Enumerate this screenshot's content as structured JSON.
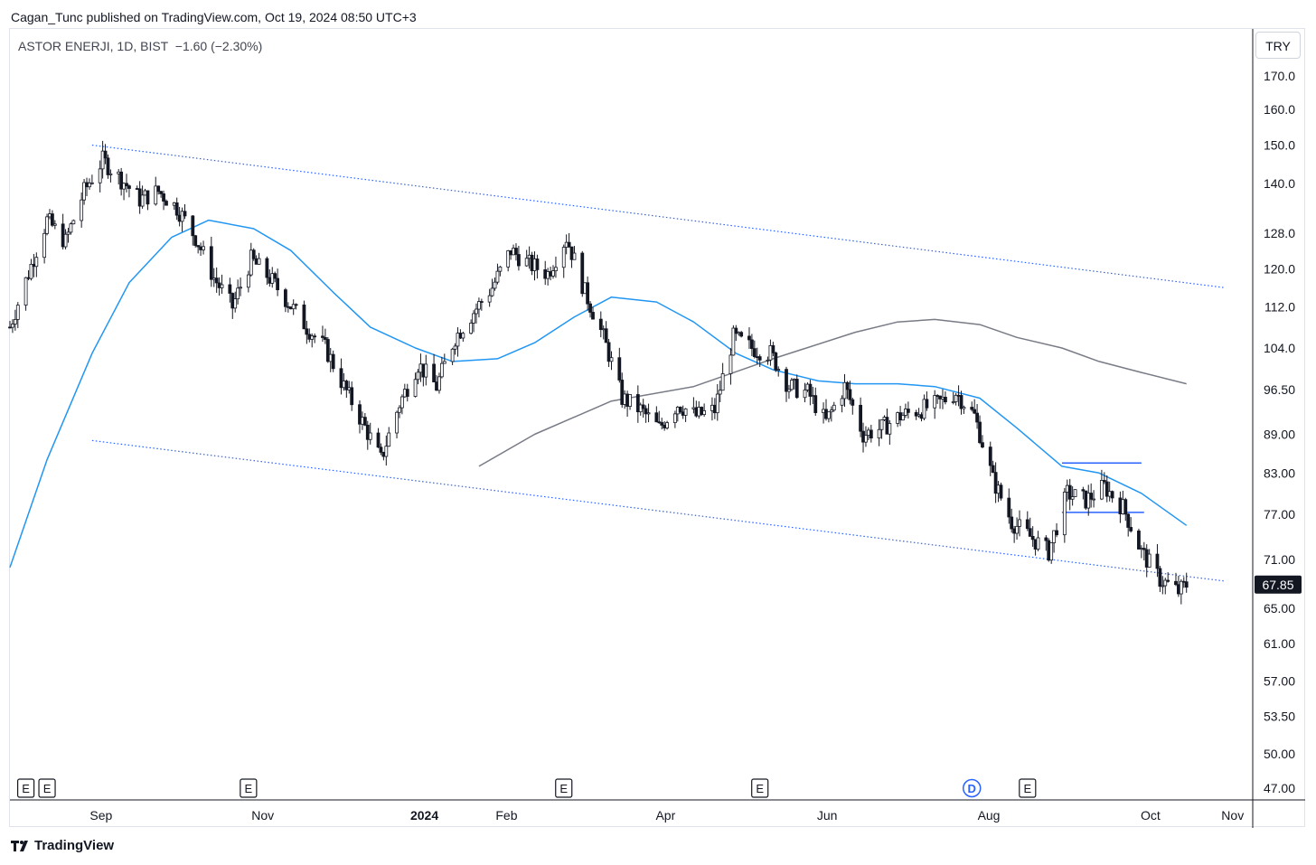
{
  "header": {
    "published_text": "Cagan_Tunc published on TradingView.com, Oct 19, 2024 08:50 UTC+3"
  },
  "legend": {
    "symbol": "ASTOR ENERJI, 1D, BIST",
    "change": "−1.60 (−2.30%)"
  },
  "currency_button": "TRY",
  "footer": {
    "brand": "TradingView"
  },
  "colors": {
    "candle": "#131722",
    "ma_fast": "#2196f3",
    "ma_slow": "#787b86",
    "channel": "#2962ff",
    "last_price_bg": "#131722"
  },
  "chart_data": {
    "type": "candlestick",
    "price_scale": "log",
    "y_ticks": [
      "170.0",
      "160.0",
      "150.0",
      "140.0",
      "128.0",
      "120.0",
      "112.0",
      "104.0",
      "96.50",
      "89.00",
      "83.00",
      "77.00",
      "71.00",
      "65.00",
      "61.00",
      "57.00",
      "53.50",
      "50.00",
      "47.00"
    ],
    "x_ticks": [
      {
        "label": "Sep",
        "bold": false
      },
      {
        "label": "Nov",
        "bold": false
      },
      {
        "label": "2024",
        "bold": true
      },
      {
        "label": "Feb",
        "bold": false
      },
      {
        "label": "Apr",
        "bold": false
      },
      {
        "label": "Jun",
        "bold": false
      },
      {
        "label": "Aug",
        "bold": false
      },
      {
        "label": "Oct",
        "bold": false
      },
      {
        "label": "Nov",
        "bold": false
      }
    ],
    "last_price": "67.85",
    "x_range": [
      "2023-08-01",
      "2024-11-12"
    ],
    "y_range": [
      46,
      185
    ],
    "events": [
      {
        "label": "E",
        "date": "2023-08-07"
      },
      {
        "label": "E",
        "date": "2023-08-15"
      },
      {
        "label": "E",
        "date": "2023-10-30"
      },
      {
        "label": "E",
        "date": "2024-02-26"
      },
      {
        "label": "E",
        "date": "2024-05-10"
      },
      {
        "label": "D",
        "date": "2024-07-29"
      },
      {
        "label": "E",
        "date": "2024-08-19"
      }
    ],
    "close_series": [
      {
        "date": "2023-08-01",
        "value": 108
      },
      {
        "date": "2023-08-08",
        "value": 119
      },
      {
        "date": "2023-08-15",
        "value": 131
      },
      {
        "date": "2023-08-22",
        "value": 126
      },
      {
        "date": "2023-08-29",
        "value": 138
      },
      {
        "date": "2023-09-05",
        "value": 146
      },
      {
        "date": "2023-09-12",
        "value": 141
      },
      {
        "date": "2023-09-19",
        "value": 136
      },
      {
        "date": "2023-09-26",
        "value": 138
      },
      {
        "date": "2023-10-03",
        "value": 134
      },
      {
        "date": "2023-10-10",
        "value": 127
      },
      {
        "date": "2023-10-17",
        "value": 118
      },
      {
        "date": "2023-10-24",
        "value": 112
      },
      {
        "date": "2023-10-31",
        "value": 122
      },
      {
        "date": "2023-11-07",
        "value": 118
      },
      {
        "date": "2023-11-14",
        "value": 113
      },
      {
        "date": "2023-11-21",
        "value": 108
      },
      {
        "date": "2023-11-28",
        "value": 104
      },
      {
        "date": "2023-12-05",
        "value": 97
      },
      {
        "date": "2023-12-12",
        "value": 91
      },
      {
        "date": "2023-12-19",
        "value": 85
      },
      {
        "date": "2023-12-26",
        "value": 94
      },
      {
        "date": "2024-01-02",
        "value": 101
      },
      {
        "date": "2024-01-09",
        "value": 97
      },
      {
        "date": "2024-01-16",
        "value": 106
      },
      {
        "date": "2024-01-23",
        "value": 111
      },
      {
        "date": "2024-01-30",
        "value": 116
      },
      {
        "date": "2024-02-06",
        "value": 124
      },
      {
        "date": "2024-02-13",
        "value": 121
      },
      {
        "date": "2024-02-20",
        "value": 119
      },
      {
        "date": "2024-02-27",
        "value": 127
      },
      {
        "date": "2024-03-05",
        "value": 115
      },
      {
        "date": "2024-03-12",
        "value": 106
      },
      {
        "date": "2024-03-19",
        "value": 95
      },
      {
        "date": "2024-03-26",
        "value": 93
      },
      {
        "date": "2024-04-02",
        "value": 90
      },
      {
        "date": "2024-04-09",
        "value": 94
      },
      {
        "date": "2024-04-16",
        "value": 92
      },
      {
        "date": "2024-04-23",
        "value": 93
      },
      {
        "date": "2024-04-30",
        "value": 106
      },
      {
        "date": "2024-05-07",
        "value": 104
      },
      {
        "date": "2024-05-14",
        "value": 103
      },
      {
        "date": "2024-05-21",
        "value": 97
      },
      {
        "date": "2024-05-28",
        "value": 96
      },
      {
        "date": "2024-06-04",
        "value": 91
      },
      {
        "date": "2024-06-11",
        "value": 97
      },
      {
        "date": "2024-06-18",
        "value": 89
      },
      {
        "date": "2024-06-25",
        "value": 90
      },
      {
        "date": "2024-07-02",
        "value": 92
      },
      {
        "date": "2024-07-09",
        "value": 93
      },
      {
        "date": "2024-07-16",
        "value": 94
      },
      {
        "date": "2024-07-23",
        "value": 96
      },
      {
        "date": "2024-07-30",
        "value": 92
      },
      {
        "date": "2024-08-06",
        "value": 82
      },
      {
        "date": "2024-08-13",
        "value": 76
      },
      {
        "date": "2024-08-20",
        "value": 74
      },
      {
        "date": "2024-08-27",
        "value": 72
      },
      {
        "date": "2024-09-03",
        "value": 80
      },
      {
        "date": "2024-09-10",
        "value": 79
      },
      {
        "date": "2024-09-17",
        "value": 81
      },
      {
        "date": "2024-09-24",
        "value": 78
      },
      {
        "date": "2024-10-01",
        "value": 72
      },
      {
        "date": "2024-10-08",
        "value": 68.5
      },
      {
        "date": "2024-10-15",
        "value": 67
      },
      {
        "date": "2024-10-18",
        "value": 67.85
      }
    ],
    "ma_fast": [
      {
        "date": "2023-08-01",
        "value": 70
      },
      {
        "date": "2023-08-15",
        "value": 85
      },
      {
        "date": "2023-09-01",
        "value": 103
      },
      {
        "date": "2023-09-15",
        "value": 117
      },
      {
        "date": "2023-10-01",
        "value": 127
      },
      {
        "date": "2023-10-15",
        "value": 131
      },
      {
        "date": "2023-11-01",
        "value": 129
      },
      {
        "date": "2023-11-15",
        "value": 124
      },
      {
        "date": "2023-12-01",
        "value": 115
      },
      {
        "date": "2023-12-15",
        "value": 108
      },
      {
        "date": "2024-01-01",
        "value": 104
      },
      {
        "date": "2024-01-15",
        "value": 101.5
      },
      {
        "date": "2024-02-01",
        "value": 102
      },
      {
        "date": "2024-02-15",
        "value": 105
      },
      {
        "date": "2024-03-01",
        "value": 110
      },
      {
        "date": "2024-03-15",
        "value": 114
      },
      {
        "date": "2024-04-01",
        "value": 113
      },
      {
        "date": "2024-04-15",
        "value": 109
      },
      {
        "date": "2024-05-01",
        "value": 103
      },
      {
        "date": "2024-05-15",
        "value": 100
      },
      {
        "date": "2024-06-01",
        "value": 98
      },
      {
        "date": "2024-06-15",
        "value": 97.5
      },
      {
        "date": "2024-07-01",
        "value": 97.5
      },
      {
        "date": "2024-07-15",
        "value": 97
      },
      {
        "date": "2024-08-01",
        "value": 95
      },
      {
        "date": "2024-08-15",
        "value": 90
      },
      {
        "date": "2024-09-01",
        "value": 84
      },
      {
        "date": "2024-09-15",
        "value": 83
      },
      {
        "date": "2024-10-01",
        "value": 80
      },
      {
        "date": "2024-10-18",
        "value": 75.5
      }
    ],
    "ma_slow": [
      {
        "date": "2024-01-25",
        "value": 84
      },
      {
        "date": "2024-02-15",
        "value": 89
      },
      {
        "date": "2024-03-15",
        "value": 94.5
      },
      {
        "date": "2024-04-15",
        "value": 97
      },
      {
        "date": "2024-05-15",
        "value": 102
      },
      {
        "date": "2024-06-15",
        "value": 107
      },
      {
        "date": "2024-07-01",
        "value": 109
      },
      {
        "date": "2024-07-15",
        "value": 109.5
      },
      {
        "date": "2024-08-01",
        "value": 108.5
      },
      {
        "date": "2024-08-15",
        "value": 106
      },
      {
        "date": "2024-09-01",
        "value": 104
      },
      {
        "date": "2024-09-15",
        "value": 101.5
      },
      {
        "date": "2024-10-01",
        "value": 99.5
      },
      {
        "date": "2024-10-18",
        "value": 97.5
      }
    ],
    "channel_upper": [
      {
        "date": "2023-09-01",
        "value": 150
      },
      {
        "date": "2024-11-01",
        "value": 116
      }
    ],
    "channel_lower": [
      {
        "date": "2023-09-01",
        "value": 88
      },
      {
        "date": "2024-11-01",
        "value": 68.3
      }
    ],
    "levels": [
      {
        "from": "2024-09-01",
        "to": "2024-10-01",
        "value": 84.5
      },
      {
        "from": "2024-09-01",
        "to": "2024-10-02",
        "value": 77.3
      }
    ]
  }
}
